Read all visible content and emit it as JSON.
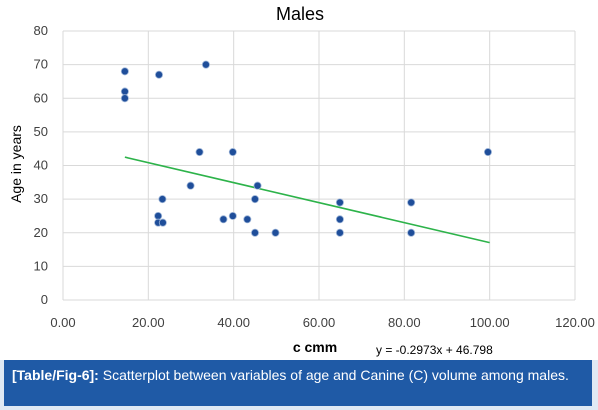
{
  "chart_data": {
    "type": "scatter",
    "title": "Males",
    "xlabel": "c cmm",
    "ylabel": "Age in years",
    "xlim": [
      0,
      120
    ],
    "ylim": [
      0,
      80
    ],
    "x_ticks": [
      "0.00",
      "20.00",
      "40.00",
      "60.00",
      "80.00",
      "100.00",
      "120.00"
    ],
    "y_ticks": [
      "0",
      "10",
      "20",
      "30",
      "40",
      "50",
      "60",
      "70",
      "80"
    ],
    "grid": true,
    "marker_color": "#1f4e9a",
    "trendline_color": "#2db34a",
    "trendline": {
      "slope": -0.2973,
      "intercept": 46.798,
      "x_start": 14.5,
      "x_end": 100,
      "equation": "y = -0.2973x + 46.798"
    },
    "points": [
      {
        "x": 14.5,
        "y": 68
      },
      {
        "x": 14.5,
        "y": 62
      },
      {
        "x": 14.5,
        "y": 60
      },
      {
        "x": 22.5,
        "y": 67
      },
      {
        "x": 33.5,
        "y": 70
      },
      {
        "x": 22.3,
        "y": 25
      },
      {
        "x": 22.3,
        "y": 23
      },
      {
        "x": 23.4,
        "y": 23
      },
      {
        "x": 23.3,
        "y": 30
      },
      {
        "x": 29.9,
        "y": 34
      },
      {
        "x": 32,
        "y": 44
      },
      {
        "x": 37.6,
        "y": 24
      },
      {
        "x": 39.8,
        "y": 25
      },
      {
        "x": 39.8,
        "y": 44
      },
      {
        "x": 43.2,
        "y": 24
      },
      {
        "x": 45,
        "y": 30
      },
      {
        "x": 45,
        "y": 20
      },
      {
        "x": 45.6,
        "y": 34
      },
      {
        "x": 49.8,
        "y": 20
      },
      {
        "x": 64.9,
        "y": 29
      },
      {
        "x": 64.9,
        "y": 24
      },
      {
        "x": 64.9,
        "y": 20
      },
      {
        "x": 81.6,
        "y": 29
      },
      {
        "x": 81.6,
        "y": 20
      },
      {
        "x": 99.6,
        "y": 44
      }
    ]
  },
  "caption": {
    "tag": "[Table/Fig-6]:",
    "text": " Scatterplot between variables of age and Canine (C) volume among males."
  }
}
